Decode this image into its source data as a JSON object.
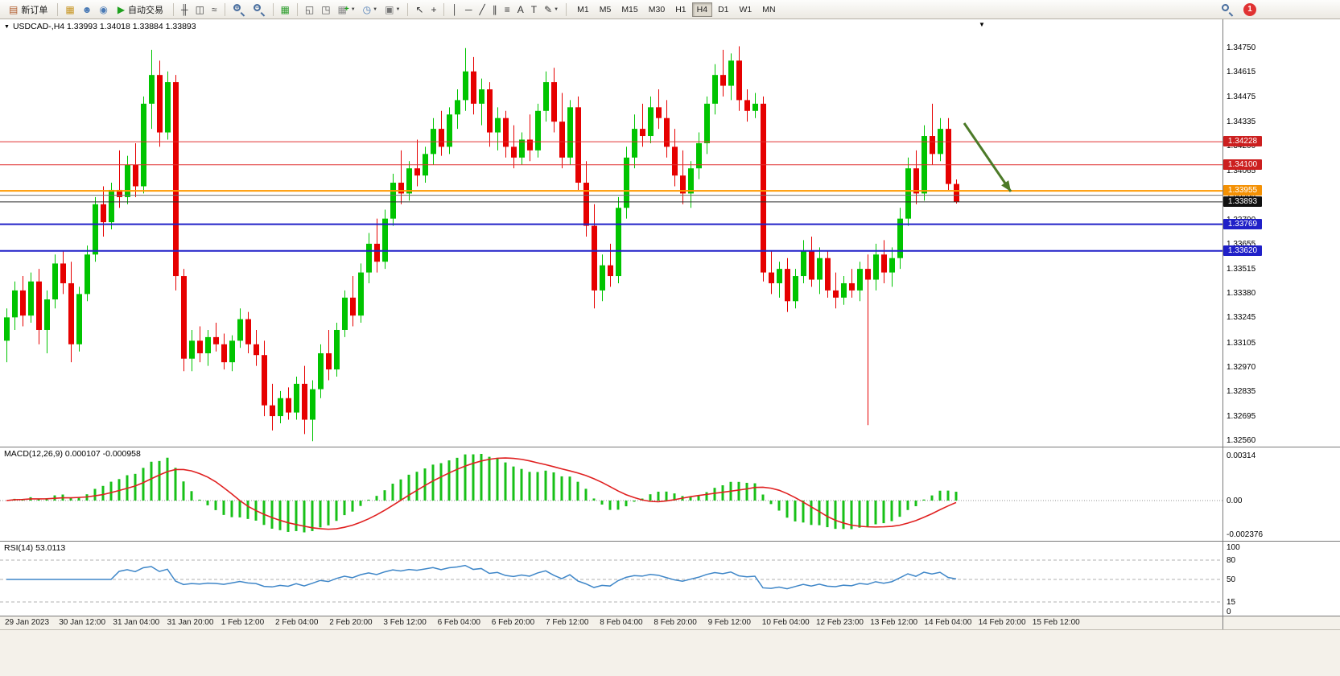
{
  "toolbar": {
    "notification_count": "1",
    "timeframes": [
      "M1",
      "M5",
      "M15",
      "M30",
      "H1",
      "H4",
      "D1",
      "W1",
      "MN"
    ],
    "active_timeframe": "H4",
    "items": [
      {
        "type": "button",
        "name": "new-order-button",
        "icon_glyph": "▤",
        "icon_color": "#b05a2a",
        "label": "新订单"
      },
      {
        "type": "sep"
      },
      {
        "type": "icon",
        "name": "market-watch-icon",
        "glyph": "▦",
        "color": "#c79420"
      },
      {
        "type": "icon",
        "name": "navigator-icon",
        "glyph": "☻",
        "color": "#4a7ab5"
      },
      {
        "type": "icon",
        "name": "terminal-icon",
        "glyph": "◉",
        "color": "#4a7ab5"
      },
      {
        "type": "button",
        "name": "autotrading-button",
        "icon_glyph": "▶",
        "icon_color": "#1fa11f",
        "label": "自动交易"
      },
      {
        "type": "sep"
      },
      {
        "type": "icon",
        "name": "bar-chart-mode-icon",
        "glyph": "╫",
        "color": "#444444"
      },
      {
        "type": "icon",
        "name": "candlestick-mode-icon",
        "glyph": "◫",
        "color": "#444444"
      },
      {
        "type": "icon",
        "name": "line-chart-mode-icon",
        "glyph": "≈",
        "color": "#444444"
      },
      {
        "type": "sep"
      },
      {
        "type": "magnifier",
        "name": "zoom-in-icon",
        "sign": "+"
      },
      {
        "type": "magnifier",
        "name": "zoom-out-icon",
        "sign": "−"
      },
      {
        "type": "sep"
      },
      {
        "type": "icon",
        "name": "tile-windows-icon",
        "glyph": "▦",
        "color": "#2f9e2f"
      },
      {
        "type": "sep"
      },
      {
        "type": "icon",
        "name": "new-chart-up-icon",
        "glyph": "◱",
        "color": "#555555"
      },
      {
        "type": "icon",
        "name": "new-chart-down-icon",
        "glyph": "◳",
        "color": "#555555"
      },
      {
        "type": "icon",
        "name": "add-indicator-icon",
        "glyph": "▦",
        "color": "#888888",
        "badge": "+",
        "badge_color": "#1fa11f",
        "caret": true
      },
      {
        "type": "icon",
        "name": "clock-icon",
        "glyph": "◷",
        "color": "#4a7ab5",
        "caret": true
      },
      {
        "type": "icon",
        "name": "template-icon",
        "glyph": "▣",
        "color": "#777777",
        "caret": true
      },
      {
        "type": "sep"
      },
      {
        "type": "icon",
        "name": "cursor-icon",
        "glyph": "↖",
        "color": "#333333"
      },
      {
        "type": "icon",
        "name": "crosshair-icon",
        "glyph": "+",
        "color": "#333333"
      },
      {
        "type": "sep"
      },
      {
        "type": "icon",
        "name": "vertical-line-icon",
        "glyph": "│",
        "color": "#333333"
      },
      {
        "type": "icon",
        "name": "horizontal-line-icon",
        "glyph": "─",
        "color": "#333333"
      },
      {
        "type": "icon",
        "name": "trendline-icon",
        "glyph": "╱",
        "color": "#333333"
      },
      {
        "type": "icon",
        "name": "channel-icon",
        "glyph": "∥",
        "color": "#333333"
      },
      {
        "type": "icon",
        "name": "fibonacci-icon",
        "glyph": "≡",
        "color": "#333333"
      },
      {
        "type": "icon",
        "name": "text-icon",
        "glyph": "A",
        "color": "#333333"
      },
      {
        "type": "icon",
        "name": "text-label-icon",
        "glyph": "T",
        "color": "#333333"
      },
      {
        "type": "icon",
        "name": "draw-tools-icon",
        "glyph": "✎",
        "color": "#333333",
        "caret": true
      },
      {
        "type": "sep"
      },
      {
        "type": "timeframes",
        "name": "timeframe-group"
      }
    ]
  },
  "chart": {
    "title": "USDCAD-,H4 1.33993 1.34018 1.33884 1.33893",
    "symbol": "USDCAD-",
    "period": "H4",
    "shift_marker": "▼",
    "collapse_icon": "▼"
  },
  "chart_data": {
    "type": "candlestick",
    "symbol": "USDCAD-",
    "timeframe": "H4",
    "ohlc_display": {
      "open": "1.33993",
      "high": "1.34018",
      "low": "1.33884",
      "close": "1.33893"
    },
    "price_axis_ticks": [
      "1.34750",
      "1.34615",
      "1.34475",
      "1.34335",
      "1.34200",
      "1.34065",
      "1.33930",
      "1.33790",
      "1.33655",
      "1.33515",
      "1.33380",
      "1.33245",
      "1.33105",
      "1.32970",
      "1.32835",
      "1.32695",
      "1.32560"
    ],
    "hlines": [
      {
        "name": "resistance-line-1",
        "price": 1.34228,
        "color": "#e03030",
        "width": 1,
        "label": "1.34228",
        "badge_color": "#cc1f1f"
      },
      {
        "name": "resistance-line-2",
        "price": 1.341,
        "color": "#e03030",
        "width": 1,
        "label": "1.34100",
        "badge_color": "#cc1f1f"
      },
      {
        "name": "pivot-line",
        "price": 1.33955,
        "color": "#ff9900",
        "width": 2,
        "label": "1.33955",
        "badge_color": "#f49104"
      },
      {
        "name": "gray-line",
        "price": 1.3393,
        "color": "#707070",
        "width": 1,
        "label": "",
        "badge_color": ""
      },
      {
        "name": "bid-line",
        "price": 1.33893,
        "color": "#2a2a2a",
        "width": 1,
        "label": "1.33893",
        "badge_color": "#111111"
      },
      {
        "name": "support-line-1",
        "price": 1.33769,
        "color": "#2020c8",
        "width": 2,
        "label": "1.33769",
        "badge_color": "#2020c8"
      },
      {
        "name": "support-line-2",
        "price": 1.3362,
        "color": "#2020c8",
        "width": 2,
        "label": "1.33620",
        "badge_color": "#2020c8"
      }
    ],
    "arrow": {
      "name": "trend-arrow",
      "from": [
        1198,
        129
      ],
      "to": [
        1256,
        214
      ],
      "color": "#4c7a28"
    },
    "time_labels": [
      "29 Jan 2023",
      "30 Jan 12:00",
      "31 Jan 04:00",
      "31 Jan 20:00",
      "1 Feb 12:00",
      "2 Feb 04:00",
      "2 Feb 20:00",
      "3 Feb 12:00",
      "6 Feb 04:00",
      "6 Feb 20:00",
      "7 Feb 12:00",
      "8 Feb 04:00",
      "8 Feb 20:00",
      "9 Feb 12:00",
      "10 Feb 04:00",
      "12 Feb 23:00",
      "13 Feb 12:00",
      "14 Feb 04:00",
      "14 Feb 20:00",
      "15 Feb 12:00"
    ],
    "candles": [
      [
        1.3312,
        1.333,
        1.33,
        1.3325
      ],
      [
        1.3325,
        1.3345,
        1.3318,
        1.334
      ],
      [
        1.334,
        1.3348,
        1.332,
        1.3326
      ],
      [
        1.3326,
        1.335,
        1.3322,
        1.3345
      ],
      [
        1.3345,
        1.3352,
        1.331,
        1.3318
      ],
      [
        1.3318,
        1.334,
        1.3305,
        1.3335
      ],
      [
        1.3335,
        1.336,
        1.333,
        1.3355
      ],
      [
        1.3355,
        1.3362,
        1.3338,
        1.3344
      ],
      [
        1.3344,
        1.3356,
        1.33,
        1.331
      ],
      [
        1.331,
        1.3342,
        1.3306,
        1.3338
      ],
      [
        1.3338,
        1.3365,
        1.3334,
        1.336
      ],
      [
        1.336,
        1.3392,
        1.3356,
        1.3388
      ],
      [
        1.3388,
        1.3398,
        1.337,
        1.3378
      ],
      [
        1.3378,
        1.34,
        1.3374,
        1.3396
      ],
      [
        1.3396,
        1.3418,
        1.3386,
        1.3392
      ],
      [
        1.3392,
        1.3415,
        1.3388,
        1.341
      ],
      [
        1.341,
        1.3422,
        1.3392,
        1.3398
      ],
      [
        1.3398,
        1.3448,
        1.3394,
        1.3444
      ],
      [
        1.3444,
        1.3474,
        1.343,
        1.346
      ],
      [
        1.346,
        1.3468,
        1.342,
        1.3428
      ],
      [
        1.3428,
        1.3462,
        1.3424,
        1.3456
      ],
      [
        1.3456,
        1.346,
        1.334,
        1.3348
      ],
      [
        1.3348,
        1.3352,
        1.3295,
        1.3302
      ],
      [
        1.3302,
        1.3318,
        1.3295,
        1.3312
      ],
      [
        1.3312,
        1.332,
        1.33,
        1.3305
      ],
      [
        1.3305,
        1.3318,
        1.3298,
        1.3314
      ],
      [
        1.3314,
        1.3322,
        1.3306,
        1.331
      ],
      [
        1.331,
        1.3316,
        1.3296,
        1.33
      ],
      [
        1.33,
        1.3315,
        1.3295,
        1.3312
      ],
      [
        1.3312,
        1.333,
        1.3308,
        1.3324
      ],
      [
        1.3324,
        1.3328,
        1.3305,
        1.331
      ],
      [
        1.331,
        1.3318,
        1.3298,
        1.3304
      ],
      [
        1.3304,
        1.3312,
        1.327,
        1.3276
      ],
      [
        1.3276,
        1.3288,
        1.3262,
        1.327
      ],
      [
        1.327,
        1.3284,
        1.3266,
        1.328
      ],
      [
        1.328,
        1.3286,
        1.3268,
        1.3272
      ],
      [
        1.3272,
        1.3292,
        1.3268,
        1.3288
      ],
      [
        1.3288,
        1.3298,
        1.326,
        1.3268
      ],
      [
        1.3268,
        1.329,
        1.3256,
        1.3285
      ],
      [
        1.3285,
        1.331,
        1.328,
        1.3305
      ],
      [
        1.3305,
        1.3318,
        1.329,
        1.3296
      ],
      [
        1.3296,
        1.3322,
        1.3292,
        1.3318
      ],
      [
        1.3318,
        1.334,
        1.3314,
        1.3336
      ],
      [
        1.3336,
        1.3348,
        1.332,
        1.3326
      ],
      [
        1.3326,
        1.3355,
        1.3322,
        1.335
      ],
      [
        1.335,
        1.3372,
        1.3344,
        1.3366
      ],
      [
        1.3366,
        1.338,
        1.335,
        1.3356
      ],
      [
        1.3356,
        1.3385,
        1.3352,
        1.338
      ],
      [
        1.338,
        1.3405,
        1.3376,
        1.34
      ],
      [
        1.34,
        1.3418,
        1.3388,
        1.3394
      ],
      [
        1.3394,
        1.3412,
        1.339,
        1.3408
      ],
      [
        1.3408,
        1.3424,
        1.3398,
        1.3404
      ],
      [
        1.3404,
        1.342,
        1.34,
        1.3416
      ],
      [
        1.3416,
        1.3436,
        1.341,
        1.343
      ],
      [
        1.343,
        1.344,
        1.3415,
        1.342
      ],
      [
        1.342,
        1.3442,
        1.3416,
        1.3438
      ],
      [
        1.3438,
        1.3452,
        1.343,
        1.3446
      ],
      [
        1.3446,
        1.3475,
        1.344,
        1.3462
      ],
      [
        1.3462,
        1.347,
        1.3438,
        1.3444
      ],
      [
        1.3444,
        1.3458,
        1.3432,
        1.3452
      ],
      [
        1.3452,
        1.3456,
        1.342,
        1.3428
      ],
      [
        1.3428,
        1.3442,
        1.3418,
        1.3436
      ],
      [
        1.3436,
        1.344,
        1.3414,
        1.342
      ],
      [
        1.342,
        1.3432,
        1.3408,
        1.3414
      ],
      [
        1.3414,
        1.3428,
        1.341,
        1.3424
      ],
      [
        1.3424,
        1.3438,
        1.3412,
        1.3418
      ],
      [
        1.3418,
        1.3444,
        1.3414,
        1.344
      ],
      [
        1.344,
        1.3462,
        1.3434,
        1.3456
      ],
      [
        1.3456,
        1.3464,
        1.3428,
        1.3434
      ],
      [
        1.3434,
        1.345,
        1.3408,
        1.3414
      ],
      [
        1.3414,
        1.3446,
        1.341,
        1.3442
      ],
      [
        1.3442,
        1.3448,
        1.3396,
        1.34
      ],
      [
        1.34,
        1.3412,
        1.337,
        1.3376
      ],
      [
        1.3376,
        1.3388,
        1.333,
        1.334
      ],
      [
        1.334,
        1.336,
        1.3334,
        1.3354
      ],
      [
        1.3354,
        1.3366,
        1.3342,
        1.3348
      ],
      [
        1.3348,
        1.3392,
        1.3344,
        1.3386
      ],
      [
        1.3386,
        1.342,
        1.338,
        1.3414
      ],
      [
        1.3414,
        1.3438,
        1.3408,
        1.343
      ],
      [
        1.343,
        1.3444,
        1.342,
        1.3426
      ],
      [
        1.3426,
        1.3448,
        1.3422,
        1.3442
      ],
      [
        1.3442,
        1.3452,
        1.343,
        1.3436
      ],
      [
        1.3436,
        1.3446,
        1.3414,
        1.342
      ],
      [
        1.342,
        1.343,
        1.3398,
        1.3404
      ],
      [
        1.3404,
        1.3418,
        1.3388,
        1.3394
      ],
      [
        1.3394,
        1.3412,
        1.3386,
        1.3408
      ],
      [
        1.3408,
        1.3428,
        1.3402,
        1.3422
      ],
      [
        1.3422,
        1.3448,
        1.3416,
        1.3444
      ],
      [
        1.3444,
        1.3466,
        1.3438,
        1.346
      ],
      [
        1.346,
        1.3474,
        1.3448,
        1.3454
      ],
      [
        1.3454,
        1.3472,
        1.3446,
        1.3468
      ],
      [
        1.3468,
        1.3476,
        1.344,
        1.3446
      ],
      [
        1.3446,
        1.3452,
        1.3434,
        1.344
      ],
      [
        1.344,
        1.345,
        1.3436,
        1.3444
      ],
      [
        1.3444,
        1.3448,
        1.3345,
        1.335
      ],
      [
        1.335,
        1.3362,
        1.3338,
        1.3344
      ],
      [
        1.3344,
        1.3356,
        1.3336,
        1.3352
      ],
      [
        1.3352,
        1.3358,
        1.3328,
        1.3334
      ],
      [
        1.3334,
        1.3352,
        1.333,
        1.3348
      ],
      [
        1.3348,
        1.3368,
        1.3344,
        1.3362
      ],
      [
        1.3362,
        1.337,
        1.3342,
        1.3346
      ],
      [
        1.3346,
        1.3364,
        1.3338,
        1.3358
      ],
      [
        1.3358,
        1.3362,
        1.3336,
        1.334
      ],
      [
        1.334,
        1.335,
        1.333,
        1.3336
      ],
      [
        1.3336,
        1.3348,
        1.3332,
        1.3344
      ],
      [
        1.3344,
        1.3352,
        1.3336,
        1.334
      ],
      [
        1.334,
        1.3356,
        1.3334,
        1.3352
      ],
      [
        1.3352,
        1.336,
        1.3265,
        1.3346
      ],
      [
        1.3346,
        1.3366,
        1.334,
        1.336
      ],
      [
        1.336,
        1.3368,
        1.3344,
        1.335
      ],
      [
        1.335,
        1.3364,
        1.3342,
        1.3358
      ],
      [
        1.3358,
        1.3386,
        1.3352,
        1.338
      ],
      [
        1.338,
        1.3414,
        1.3376,
        1.3408
      ],
      [
        1.3408,
        1.3418,
        1.3388,
        1.3394
      ],
      [
        1.3394,
        1.3432,
        1.339,
        1.3426
      ],
      [
        1.3426,
        1.3444,
        1.341,
        1.3416
      ],
      [
        1.3416,
        1.3436,
        1.3412,
        1.343
      ],
      [
        1.343,
        1.3436,
        1.3396,
        1.33993
      ],
      [
        1.33993,
        1.34018,
        1.33884,
        1.33893
      ]
    ],
    "colors": {
      "up": "#00c400",
      "down": "#e60000"
    }
  },
  "macd": {
    "label": "MACD(12,26,9) 0.000107 -0.000958",
    "params": [
      12,
      26,
      9
    ],
    "values_display": [
      "0.000107",
      "-0.000958"
    ],
    "axis_labels": [
      "0.00314",
      "0.00",
      "-0.002376"
    ],
    "histogram_color": "#18c018",
    "signal_color": "#e02020"
  },
  "rsi": {
    "label": "RSI(14) 53.0113",
    "period": 14,
    "value": "53.0113",
    "levels": [
      80,
      50,
      15
    ],
    "axis_labels": [
      "100",
      "80",
      "50",
      "15",
      "0"
    ],
    "line_color": "#3e86c8"
  }
}
